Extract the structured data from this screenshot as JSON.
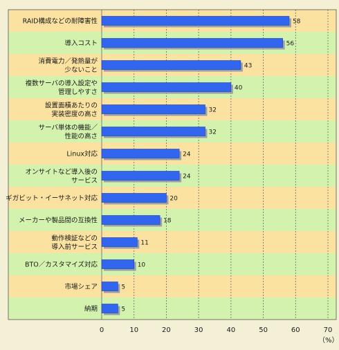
{
  "chart_data": {
    "type": "bar",
    "orientation": "horizontal",
    "categories": [
      [
        "RAID構成などの耐障害性"
      ],
      [
        "導入コスト"
      ],
      [
        "消費電力／発熱量が",
        "少ないこと"
      ],
      [
        "複数サーバの導入設定や",
        "管理しやすさ"
      ],
      [
        "設置面積あたりの",
        "実装密度の高さ"
      ],
      [
        "サーバ単体の機能／",
        "性能の高さ"
      ],
      [
        "Linux対応"
      ],
      [
        "オンサイトなど導入後の",
        "サービス"
      ],
      [
        "ギガビット・イーサネット対応"
      ],
      [
        "メーカーや製品間の互換性"
      ],
      [
        "動作検証などの",
        "導入前サービス"
      ],
      [
        "BTO／カスタマイズ対応"
      ],
      [
        "市場シェア"
      ],
      [
        "納期"
      ]
    ],
    "values": [
      58,
      56,
      43,
      40,
      32,
      32,
      24,
      24,
      20,
      18,
      11,
      10,
      5,
      5
    ],
    "xlim": [
      0,
      70
    ],
    "xticks": [
      0,
      10,
      20,
      30,
      40,
      50,
      60,
      70
    ],
    "unit_label": "（%）",
    "grid": true,
    "colors": {
      "bar": "#3366ee",
      "bar_stroke": "#1f3faa",
      "shadow": "#9aa0a8",
      "band_a": "#fbe2a0",
      "band_b": "#d3f2ad",
      "grid": "#666666",
      "frame": "#555555"
    }
  }
}
